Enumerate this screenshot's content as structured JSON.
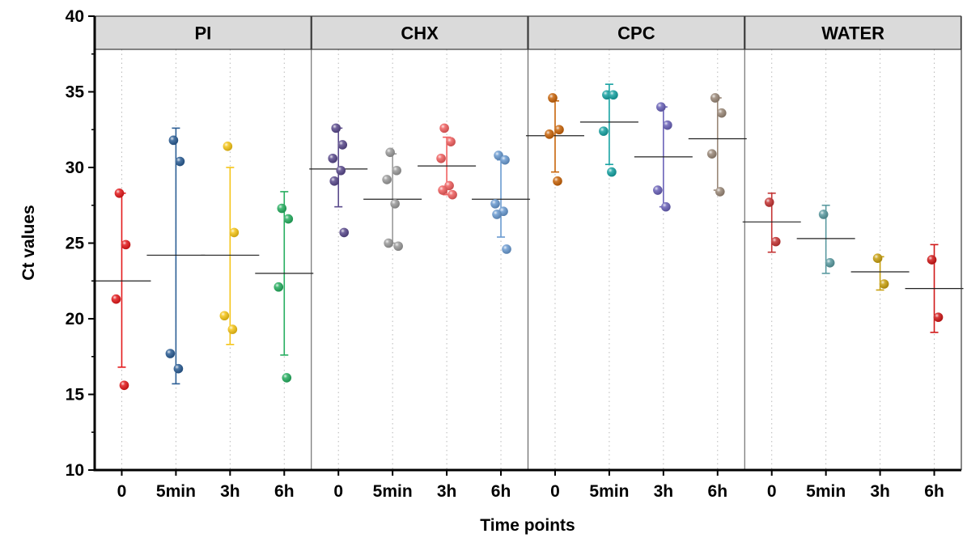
{
  "chart_data": {
    "type": "scatter",
    "title": "",
    "xlabel": "Time points",
    "ylabel": "Ct values",
    "ylim": [
      10,
      40
    ],
    "yticks": [
      10,
      15,
      20,
      25,
      30,
      35,
      40
    ],
    "grid": "dotted vertical",
    "legend": "none",
    "categories": [
      "0",
      "5min",
      "3h",
      "6h"
    ],
    "panels": [
      {
        "name": "PI",
        "groups": [
          {
            "category": "0",
            "color": "#e31a1c",
            "mean": 22.5,
            "err_low": 16.8,
            "err_high": 28.3,
            "points": [
              28.3,
              24.9,
              21.3,
              15.6
            ]
          },
          {
            "category": "5min",
            "color": "#2b5d94",
            "mean": 24.2,
            "err_low": 15.7,
            "err_high": 32.6,
            "points": [
              31.8,
              30.4,
              17.7,
              16.7
            ]
          },
          {
            "category": "3h",
            "color": "#f5c518",
            "mean": 24.2,
            "err_low": 18.3,
            "err_high": 30.0,
            "points": [
              31.4,
              25.7,
              20.2,
              19.3
            ]
          },
          {
            "category": "6h",
            "color": "#27ae60",
            "mean": 23.0,
            "err_low": 17.6,
            "err_high": 28.4,
            "points": [
              27.3,
              26.6,
              22.1,
              16.1
            ]
          }
        ]
      },
      {
        "name": "CHX",
        "groups": [
          {
            "category": "0",
            "color": "#5a4a8c",
            "mean": 29.9,
            "err_low": 27.4,
            "err_high": 32.6,
            "points": [
              32.6,
              31.5,
              30.6,
              29.8,
              29.1,
              25.7
            ]
          },
          {
            "category": "5min",
            "color": "#9a9a9a",
            "mean": 27.9,
            "err_low": 25.0,
            "err_high": 30.9,
            "points": [
              31.0,
              29.8,
              29.2,
              27.6,
              25.0,
              24.8
            ]
          },
          {
            "category": "3h",
            "color": "#f06060",
            "mean": 30.1,
            "err_low": 28.2,
            "err_high": 32.0,
            "points": [
              32.6,
              31.7,
              30.6,
              28.8,
              28.5,
              28.2
            ]
          },
          {
            "category": "6h",
            "color": "#6a9ad0",
            "mean": 27.9,
            "err_low": 25.4,
            "err_high": 30.5,
            "points": [
              30.8,
              30.5,
              27.6,
              27.1,
              26.9,
              24.6
            ]
          }
        ]
      },
      {
        "name": "CPC",
        "groups": [
          {
            "category": "0",
            "color": "#c8640a",
            "mean": 32.1,
            "err_low": 29.7,
            "err_high": 34.4,
            "points": [
              34.6,
              32.5,
              32.2,
              29.1
            ]
          },
          {
            "category": "5min",
            "color": "#17a2a2",
            "mean": 33.0,
            "err_low": 30.2,
            "err_high": 35.5,
            "points": [
              34.8,
              34.8,
              32.4,
              29.7
            ]
          },
          {
            "category": "3h",
            "color": "#6a62b8",
            "mean": 30.7,
            "err_low": 27.4,
            "err_high": 34.0,
            "points": [
              34.0,
              32.8,
              28.5,
              27.4
            ]
          },
          {
            "category": "6h",
            "color": "#9a8878",
            "mean": 31.9,
            "err_low": 28.5,
            "err_high": 34.6,
            "points": [
              34.6,
              33.6,
              30.9,
              28.4
            ]
          }
        ]
      },
      {
        "name": "WATER",
        "groups": [
          {
            "category": "0",
            "color": "#c43434",
            "mean": 26.4,
            "err_low": 24.4,
            "err_high": 28.3,
            "points": [
              27.7,
              25.1
            ]
          },
          {
            "category": "5min",
            "color": "#5a9aa0",
            "mean": 25.3,
            "err_low": 23.0,
            "err_high": 27.5,
            "points": [
              26.9,
              23.7
            ]
          },
          {
            "category": "3h",
            "color": "#c8a010",
            "mean": 23.1,
            "err_low": 21.9,
            "err_high": 24.1,
            "points": [
              24.0,
              22.3
            ]
          },
          {
            "category": "6h",
            "color": "#d01818",
            "mean": 22.0,
            "err_low": 19.1,
            "err_high": 24.9,
            "points": [
              23.9,
              20.1
            ]
          }
        ]
      }
    ]
  }
}
